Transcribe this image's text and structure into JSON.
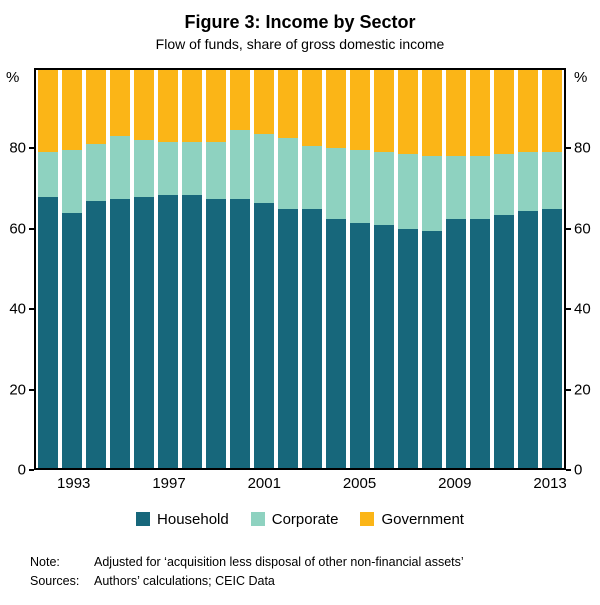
{
  "title": "Figure 3: Income by Sector",
  "subtitle": "Flow of funds, share of gross domestic income",
  "axis": {
    "unit_left": "%",
    "unit_right": "%",
    "yticks": [
      0,
      20,
      40,
      60,
      80
    ],
    "ymax": 100,
    "xtick_labels": [
      "1993",
      "1997",
      "2001",
      "2005",
      "2009",
      "2013"
    ]
  },
  "legend": {
    "items": [
      {
        "label": "Household",
        "color": "#17677b"
      },
      {
        "label": "Corporate",
        "color": "#8ed2c0"
      },
      {
        "label": "Government",
        "color": "#fbb517"
      }
    ]
  },
  "notes": {
    "note_label": "Note:",
    "note_text": "Adjusted for ‘acquisition less disposal of other non-financial assets’",
    "sources_label": "Sources:",
    "sources_text": "Authors’ calculations; CEIC Data"
  },
  "chart_data": {
    "type": "bar",
    "stacked": true,
    "title": "Figure 3: Income by Sector",
    "subtitle": "Flow of funds, share of gross domestic income",
    "ylabel": "%",
    "ylim": [
      0,
      100
    ],
    "grid": false,
    "legend_position": "bottom",
    "x": [
      1992,
      1993,
      1994,
      1995,
      1996,
      1997,
      1998,
      1999,
      2000,
      2001,
      2002,
      2003,
      2004,
      2005,
      2006,
      2007,
      2008,
      2009,
      2010,
      2011,
      2012,
      2013
    ],
    "series": [
      {
        "name": "Household",
        "color": "#17677b",
        "values": [
          68,
          64,
          67,
          67.5,
          68,
          68.5,
          68.5,
          67.5,
          67.5,
          66.5,
          65,
          65,
          62.5,
          61.5,
          61,
          60,
          59.5,
          62.5,
          62.5,
          63.5,
          64.5,
          65
        ]
      },
      {
        "name": "Corporate",
        "color": "#8ed2c0",
        "values": [
          11.5,
          16,
          14.5,
          16,
          14.5,
          13.5,
          13.5,
          14.5,
          17.5,
          17.5,
          18,
          16,
          18,
          18.5,
          18.5,
          19,
          19,
          16,
          16,
          15.5,
          15,
          14.5
        ]
      },
      {
        "name": "Government",
        "color": "#fbb517",
        "values": [
          20.5,
          20,
          18.5,
          16.5,
          17.5,
          18,
          18,
          18,
          15,
          16,
          17,
          19,
          19.5,
          20,
          20.5,
          21,
          21.5,
          21.5,
          21.5,
          21,
          20.5,
          20.5
        ]
      }
    ]
  }
}
